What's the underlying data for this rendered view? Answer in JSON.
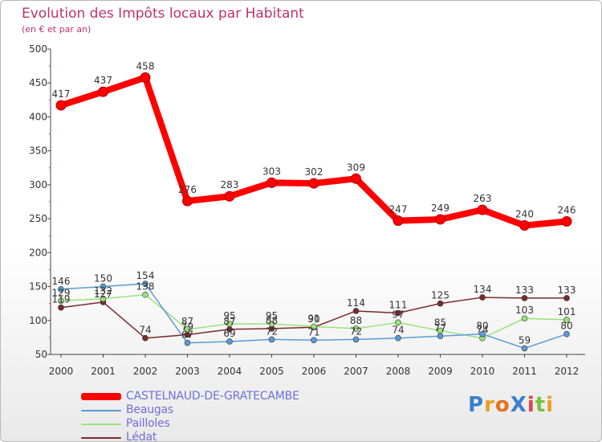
{
  "chart_data": {
    "type": "line",
    "title": "Evolution des Impôts locaux par Habitant",
    "subtitle": "(en € et par an)",
    "xlabel": "",
    "ylabel": "",
    "categories": [
      "2000",
      "2001",
      "2002",
      "2003",
      "2004",
      "2005",
      "2006",
      "2007",
      "2008",
      "2009",
      "2010",
      "2011",
      "2012"
    ],
    "ylim": [
      50,
      500
    ],
    "yticks": [
      50,
      100,
      150,
      200,
      250,
      300,
      350,
      400,
      450,
      500
    ],
    "grid": false,
    "series": [
      {
        "name": "CASTELNAUD-DE-GRATECAMBE",
        "color": "#ff0000",
        "values": [
          417,
          437,
          458,
          276,
          283,
          303,
          302,
          309,
          247,
          249,
          263,
          240,
          246
        ]
      },
      {
        "name": "Beaugas",
        "color": "#5b9bd5",
        "values": [
          146,
          150,
          154,
          67,
          69,
          72,
          71,
          72,
          74,
          77,
          80,
          59,
          80
        ]
      },
      {
        "name": "Pailloles",
        "color": "#99e27a",
        "values": [
          129,
          132,
          138,
          87,
          95,
          95,
          91,
          88,
          97,
          85,
          74,
          103,
          101
        ]
      },
      {
        "name": "Lédat",
        "color": "#7b2a2a",
        "values": [
          119,
          127,
          74,
          79,
          87,
          88,
          90,
          114,
          111,
          125,
          134,
          133,
          133
        ]
      }
    ]
  },
  "logo": {
    "text": "ProXiti",
    "letters": [
      "P",
      "r",
      "o",
      "X",
      "i",
      "t",
      "i"
    ],
    "colors": [
      "#3a7fd0",
      "#e8a020",
      "#e87020",
      "#3a7fd0",
      "#e84040",
      "#7cc040",
      "#e8a020"
    ]
  }
}
